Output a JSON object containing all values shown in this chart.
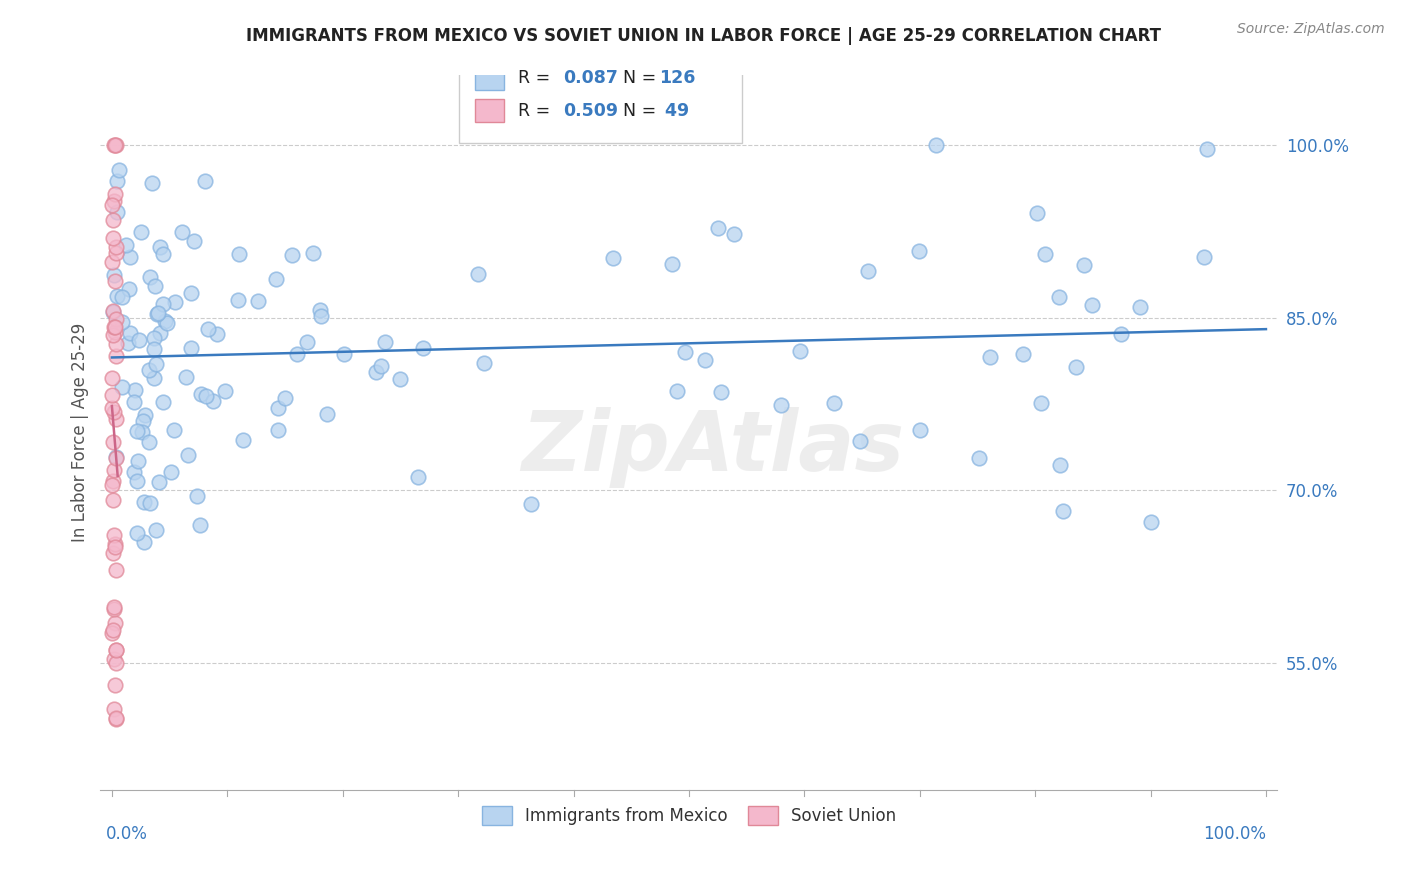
{
  "title": "IMMIGRANTS FROM MEXICO VS SOVIET UNION IN LABOR FORCE | AGE 25-29 CORRELATION CHART",
  "source": "Source: ZipAtlas.com",
  "ylabel": "In Labor Force | Age 25-29",
  "ytick_labels": [
    "55.0%",
    "70.0%",
    "85.0%",
    "100.0%"
  ],
  "ytick_values": [
    0.55,
    0.7,
    0.85,
    1.0
  ],
  "xlim": [
    -0.01,
    1.01
  ],
  "ylim": [
    0.44,
    1.06
  ],
  "mexico_color": "#b8d4f0",
  "mexico_edge": "#88b4e0",
  "soviet_color": "#f4b8cc",
  "soviet_edge": "#e08898",
  "mexico_line_color": "#3a7abf",
  "soviet_line_color": "#cc6688",
  "background_color": "#ffffff",
  "grid_color": "#cccccc",
  "title_color": "#222222",
  "axis_label_color": "#555555",
  "legend_text_color": "#222222",
  "legend_num_color": "#3a7abf",
  "tick_color": "#3a7abf",
  "watermark_text": "ZipAtlas",
  "watermark_color": "#dddddd",
  "legend_R1": "0.087",
  "legend_N1": "126",
  "legend_R2": "0.509",
  "legend_N2": " 49",
  "mexico_trend_y0": 0.8,
  "mexico_trend_y1": 0.85,
  "soviet_trend_x0": 0.0,
  "soviet_trend_x1": 0.003,
  "soviet_trend_y0": 0.72,
  "soviet_trend_y1": 0.78
}
